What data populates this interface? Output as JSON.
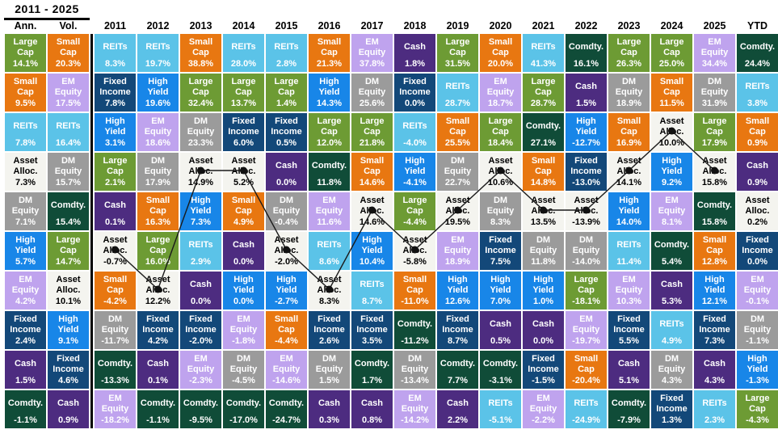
{
  "title": "2011 - 2025",
  "asset_classes": {
    "large-cap": {
      "label": "Large\nCap",
      "bg": "#6D9B34",
      "fg": "#FFFFFF"
    },
    "small-cap": {
      "label": "Small\nCap",
      "bg": "#E87711",
      "fg": "#FFFFFF"
    },
    "reits": {
      "label": "REITs",
      "bg": "#5BC3E8",
      "fg": "#FFFFFF"
    },
    "em-equity": {
      "label": "EM\nEquity",
      "bg": "#BFA3EE",
      "fg": "#FFFFFF"
    },
    "dm-equity": {
      "label": "DM\nEquity",
      "bg": "#9B9B9B",
      "fg": "#FFFFFF"
    },
    "fixed-income": {
      "label": "Fixed\nIncome",
      "bg": "#134879",
      "fg": "#FFFFFF"
    },
    "high-yield": {
      "label": "High\nYield",
      "bg": "#1886E8",
      "fg": "#FFFFFF"
    },
    "asset-alloc": {
      "label": "Asset\nAlloc.",
      "bg": "#F4F4EF",
      "fg": "#000000"
    },
    "cash": {
      "label": "Cash",
      "bg": "#4D2C80",
      "fg": "#FFFFFF"
    },
    "comdty": {
      "label": "Comdty.",
      "bg": "#104C38",
      "fg": "#FFFFFF"
    }
  },
  "overlay": {
    "traced_asset": "asset-alloc",
    "line_color": "#1a1a1a",
    "dot_color": "#111111"
  },
  "chart_data": {
    "type": "table",
    "title": "2011 - 2025",
    "note": "Asset class returns ranked best-to-worst per column; values shown as displayed",
    "columns": [
      {
        "label": "Ann.",
        "cells": [
          [
            "large-cap",
            "14.1%"
          ],
          [
            "small-cap",
            "9.5%"
          ],
          [
            "reits",
            "7.8%"
          ],
          [
            "asset-alloc",
            "7.3%"
          ],
          [
            "dm-equity",
            "7.1%"
          ],
          [
            "high-yield",
            "5.7%"
          ],
          [
            "em-equity",
            "4.2%"
          ],
          [
            "fixed-income",
            "2.4%"
          ],
          [
            "cash",
            "1.5%"
          ],
          [
            "comdty",
            "-1.1%"
          ]
        ]
      },
      {
        "label": "Vol.",
        "cells": [
          [
            "small-cap",
            "20.3%"
          ],
          [
            "em-equity",
            "17.5%"
          ],
          [
            "reits",
            "16.4%"
          ],
          [
            "dm-equity",
            "15.7%"
          ],
          [
            "comdty",
            "15.4%"
          ],
          [
            "large-cap",
            "14.7%"
          ],
          [
            "asset-alloc",
            "10.1%"
          ],
          [
            "high-yield",
            "9.1%"
          ],
          [
            "fixed-income",
            "4.6%"
          ],
          [
            "cash",
            "0.9%"
          ]
        ]
      },
      {
        "label": "2011",
        "cells": [
          [
            "reits",
            "8.3%"
          ],
          [
            "fixed-income",
            "7.8%"
          ],
          [
            "high-yield",
            "3.1%"
          ],
          [
            "large-cap",
            "2.1%"
          ],
          [
            "cash",
            "0.1%"
          ],
          [
            "asset-alloc",
            "-0.7%"
          ],
          [
            "small-cap",
            "-4.2%"
          ],
          [
            "dm-equity",
            "-11.7%"
          ],
          [
            "comdty",
            "-13.3%"
          ],
          [
            "em-equity",
            "-18.2%"
          ]
        ]
      },
      {
        "label": "2012",
        "cells": [
          [
            "reits",
            "19.7%"
          ],
          [
            "high-yield",
            "19.6%"
          ],
          [
            "em-equity",
            "18.6%"
          ],
          [
            "dm-equity",
            "17.9%"
          ],
          [
            "small-cap",
            "16.3%"
          ],
          [
            "large-cap",
            "16.0%"
          ],
          [
            "asset-alloc",
            "12.2%"
          ],
          [
            "fixed-income",
            "4.2%"
          ],
          [
            "cash",
            "0.1%"
          ],
          [
            "comdty",
            "-1.1%"
          ]
        ]
      },
      {
        "label": "2013",
        "cells": [
          [
            "small-cap",
            "38.8%"
          ],
          [
            "large-cap",
            "32.4%"
          ],
          [
            "dm-equity",
            "23.3%"
          ],
          [
            "asset-alloc",
            "14.9%"
          ],
          [
            "high-yield",
            "7.3%"
          ],
          [
            "reits",
            "2.9%"
          ],
          [
            "cash",
            "0.0%"
          ],
          [
            "fixed-income",
            "-2.0%"
          ],
          [
            "em-equity",
            "-2.3%"
          ],
          [
            "comdty",
            "-9.5%"
          ]
        ]
      },
      {
        "label": "2014",
        "cells": [
          [
            "reits",
            "28.0%"
          ],
          [
            "large-cap",
            "13.7%"
          ],
          [
            "fixed-income",
            "6.0%"
          ],
          [
            "asset-alloc",
            "5.2%"
          ],
          [
            "small-cap",
            "4.9%"
          ],
          [
            "cash",
            "0.0%"
          ],
          [
            "high-yield",
            "0.0%"
          ],
          [
            "em-equity",
            "-1.8%"
          ],
          [
            "dm-equity",
            "-4.5%"
          ],
          [
            "comdty",
            "-17.0%"
          ]
        ]
      },
      {
        "label": "2015",
        "cells": [
          [
            "reits",
            "2.8%"
          ],
          [
            "large-cap",
            "1.4%"
          ],
          [
            "fixed-income",
            "0.5%"
          ],
          [
            "cash",
            "0.0%"
          ],
          [
            "dm-equity",
            "-0.4%"
          ],
          [
            "asset-alloc",
            "-2.0%"
          ],
          [
            "high-yield",
            "-2.7%"
          ],
          [
            "small-cap",
            "-4.4%"
          ],
          [
            "em-equity",
            "-14.6%"
          ],
          [
            "comdty",
            "-24.7%"
          ]
        ]
      },
      {
        "label": "2016",
        "cells": [
          [
            "small-cap",
            "21.3%"
          ],
          [
            "high-yield",
            "14.3%"
          ],
          [
            "large-cap",
            "12.0%"
          ],
          [
            "comdty",
            "11.8%"
          ],
          [
            "em-equity",
            "11.6%"
          ],
          [
            "reits",
            "8.6%"
          ],
          [
            "asset-alloc",
            "8.3%"
          ],
          [
            "fixed-income",
            "2.6%"
          ],
          [
            "dm-equity",
            "1.5%"
          ],
          [
            "cash",
            "0.3%"
          ]
        ]
      },
      {
        "label": "2017",
        "cells": [
          [
            "em-equity",
            "37.8%"
          ],
          [
            "dm-equity",
            "25.6%"
          ],
          [
            "large-cap",
            "21.8%"
          ],
          [
            "small-cap",
            "14.6%"
          ],
          [
            "asset-alloc",
            "14.6%"
          ],
          [
            "high-yield",
            "10.4%"
          ],
          [
            "reits",
            "8.7%"
          ],
          [
            "fixed-income",
            "3.5%"
          ],
          [
            "comdty",
            "1.7%"
          ],
          [
            "cash",
            "0.8%"
          ]
        ]
      },
      {
        "label": "2018",
        "cells": [
          [
            "cash",
            "1.8%"
          ],
          [
            "fixed-income",
            "0.0%"
          ],
          [
            "reits",
            "-4.0%"
          ],
          [
            "high-yield",
            "-4.1%"
          ],
          [
            "large-cap",
            "-4.4%"
          ],
          [
            "asset-alloc",
            "-5.8%"
          ],
          [
            "small-cap",
            "-11.0%"
          ],
          [
            "comdty",
            "-11.2%"
          ],
          [
            "dm-equity",
            "-13.4%"
          ],
          [
            "em-equity",
            "-14.2%"
          ]
        ]
      },
      {
        "label": "2019",
        "cells": [
          [
            "large-cap",
            "31.5%"
          ],
          [
            "reits",
            "28.7%"
          ],
          [
            "small-cap",
            "25.5%"
          ],
          [
            "dm-equity",
            "22.7%"
          ],
          [
            "asset-alloc",
            "19.5%"
          ],
          [
            "em-equity",
            "18.9%"
          ],
          [
            "high-yield",
            "12.6%"
          ],
          [
            "fixed-income",
            "8.7%"
          ],
          [
            "comdty",
            "7.7%"
          ],
          [
            "cash",
            "2.2%"
          ]
        ]
      },
      {
        "label": "2020",
        "cells": [
          [
            "small-cap",
            "20.0%"
          ],
          [
            "em-equity",
            "18.7%"
          ],
          [
            "large-cap",
            "18.4%"
          ],
          [
            "asset-alloc",
            "10.6%"
          ],
          [
            "dm-equity",
            "8.3%"
          ],
          [
            "fixed-income",
            "7.5%"
          ],
          [
            "high-yield",
            "7.0%"
          ],
          [
            "cash",
            "0.5%"
          ],
          [
            "comdty",
            "-3.1%"
          ],
          [
            "reits",
            "-5.1%"
          ]
        ]
      },
      {
        "label": "2021",
        "cells": [
          [
            "reits",
            "41.3%"
          ],
          [
            "large-cap",
            "28.7%"
          ],
          [
            "comdty",
            "27.1%"
          ],
          [
            "small-cap",
            "14.8%"
          ],
          [
            "asset-alloc",
            "13.5%"
          ],
          [
            "dm-equity",
            "11.8%"
          ],
          [
            "high-yield",
            "1.0%"
          ],
          [
            "cash",
            "0.0%"
          ],
          [
            "fixed-income",
            "-1.5%"
          ],
          [
            "em-equity",
            "-2.2%"
          ]
        ]
      },
      {
        "label": "2022",
        "cells": [
          [
            "comdty",
            "16.1%"
          ],
          [
            "cash",
            "1.5%"
          ],
          [
            "high-yield",
            "-12.7%"
          ],
          [
            "fixed-income",
            "-13.0%"
          ],
          [
            "asset-alloc",
            "-13.9%"
          ],
          [
            "dm-equity",
            "-14.0%"
          ],
          [
            "large-cap",
            "-18.1%"
          ],
          [
            "em-equity",
            "-19.7%"
          ],
          [
            "small-cap",
            "-20.4%"
          ],
          [
            "reits",
            "-24.9%"
          ]
        ]
      },
      {
        "label": "2023",
        "cells": [
          [
            "large-cap",
            "26.3%"
          ],
          [
            "dm-equity",
            "18.9%"
          ],
          [
            "small-cap",
            "16.9%"
          ],
          [
            "asset-alloc",
            "14.1%"
          ],
          [
            "high-yield",
            "14.0%"
          ],
          [
            "reits",
            "11.4%"
          ],
          [
            "em-equity",
            "10.3%"
          ],
          [
            "fixed-income",
            "5.5%"
          ],
          [
            "cash",
            "5.1%"
          ],
          [
            "comdty",
            "-7.9%"
          ]
        ]
      },
      {
        "label": "2024",
        "cells": [
          [
            "large-cap",
            "25.0%"
          ],
          [
            "small-cap",
            "11.5%"
          ],
          [
            "asset-alloc",
            "10.0%"
          ],
          [
            "high-yield",
            "9.2%"
          ],
          [
            "em-equity",
            "8.1%"
          ],
          [
            "comdty",
            "5.4%"
          ],
          [
            "cash",
            "5.3%"
          ],
          [
            "reits",
            "4.9%"
          ],
          [
            "dm-equity",
            "4.3%"
          ],
          [
            "fixed-income",
            "1.3%"
          ]
        ]
      },
      {
        "label": "2025",
        "cells": [
          [
            "em-equity",
            "34.4%"
          ],
          [
            "dm-equity",
            "31.9%"
          ],
          [
            "large-cap",
            "17.9%"
          ],
          [
            "asset-alloc",
            "15.8%"
          ],
          [
            "comdty",
            "15.8%"
          ],
          [
            "small-cap",
            "12.8%"
          ],
          [
            "high-yield",
            "12.1%"
          ],
          [
            "fixed-income",
            "7.3%"
          ],
          [
            "cash",
            "4.3%"
          ],
          [
            "reits",
            "2.3%"
          ]
        ]
      },
      {
        "label": "YTD",
        "cells": [
          [
            "comdty",
            "24.4%"
          ],
          [
            "reits",
            "3.8%"
          ],
          [
            "small-cap",
            "0.9%"
          ],
          [
            "cash",
            "0.9%"
          ],
          [
            "asset-alloc",
            "0.2%"
          ],
          [
            "fixed-income",
            "0.0%"
          ],
          [
            "em-equity",
            "-0.1%"
          ],
          [
            "dm-equity",
            "-1.1%"
          ],
          [
            "high-yield",
            "-1.3%"
          ],
          [
            "large-cap",
            "-4.3%"
          ]
        ]
      }
    ]
  }
}
